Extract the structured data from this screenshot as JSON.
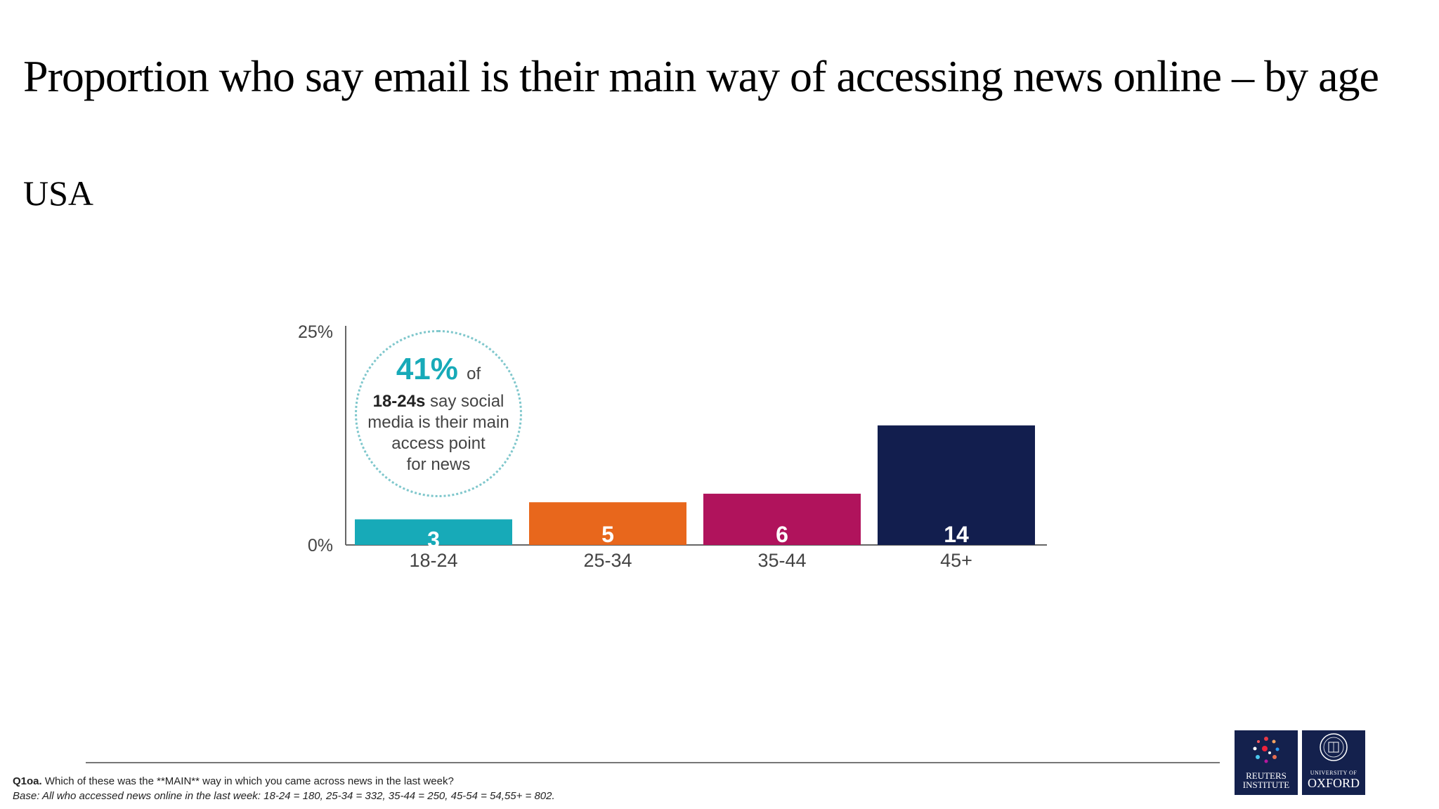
{
  "title": "Proportion who say email is their main way of accessing news online – by age",
  "subtitle": "USA",
  "chart_data": {
    "type": "bar",
    "categories": [
      "18-24",
      "25-34",
      "35-44",
      "45+"
    ],
    "values": [
      3,
      5,
      6,
      14
    ],
    "ylim": [
      0,
      25
    ],
    "yticks": [
      "0%",
      "25%"
    ],
    "colors": [
      "#17aab8",
      "#e8671c",
      "#b0135c",
      "#121e4e"
    ],
    "grid": false
  },
  "callout": {
    "percent": "41%",
    "of": "of",
    "group": "18-24s",
    "line1_rest": "say social",
    "line2": "media is their main",
    "line3": "access point",
    "line4": "for news"
  },
  "footnote": {
    "q_label": "Q1oa.",
    "question": "Which of these was the **MAIN** way in which you came across news in the last week?",
    "base": "Base: All who accessed news online in the last week: 18-24 = 180, 25-34 = 332, 35-44 = 250, 45-54 = 54,55+ = 802."
  },
  "logos": {
    "reuters_line1": "REUTERS",
    "reuters_line2": "INSTITUTE",
    "oxford_line1": "UNIVERSITY OF",
    "oxford_line2": "OXFORD"
  }
}
